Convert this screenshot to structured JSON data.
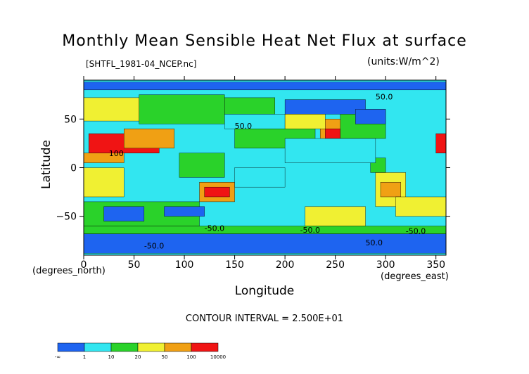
{
  "chart_data": {
    "type": "heatmap",
    "title": "Monthly Mean Sensible Heat Net Flux at surface",
    "file_label": "[SHTFL_1981-04_NCEP.nc]",
    "units_label": "(units:W/m^2)",
    "xlabel": "Longitude",
    "ylabel": "Latitude",
    "x_unit_label": "(degrees_east)",
    "y_unit_label": "(degrees_north)",
    "xlim": [
      0,
      360
    ],
    "ylim": [
      -90,
      90
    ],
    "x_ticks": [
      0,
      50,
      100,
      150,
      200,
      250,
      300,
      350
    ],
    "y_ticks": [
      -50,
      0,
      50
    ],
    "contour_interval_text": "CONTOUR INTERVAL = 2.500E+01",
    "contour_labels": [
      "50.0",
      "50.0",
      "100",
      "-50.0",
      "-50.0",
      "-50.0",
      "50.0",
      "-50.0"
    ],
    "colorbar": {
      "boundaries": [
        "-∞",
        "1",
        "10",
        "20",
        "50",
        "100",
        "10000"
      ],
      "colors": [
        "#1e64f0",
        "#32e6f0",
        "#2ad22a",
        "#f0f032",
        "#f0a014",
        "#f01414"
      ]
    },
    "regions": [
      {
        "lon": [
          0,
          360
        ],
        "lat": [
          -90,
          90
        ],
        "bin": 1
      },
      {
        "lon": [
          0,
          360
        ],
        "lat": [
          -88,
          -68
        ],
        "bin": 0
      },
      {
        "lon": [
          0,
          360
        ],
        "lat": [
          80,
          88
        ],
        "bin": 0
      },
      {
        "lon": [
          0,
          55
        ],
        "lat": [
          48,
          72
        ],
        "bin": 3
      },
      {
        "lon": [
          55,
          140
        ],
        "lat": [
          45,
          75
        ],
        "bin": 2
      },
      {
        "lon": [
          140,
          190
        ],
        "lat": [
          55,
          72
        ],
        "bin": 2
      },
      {
        "lon": [
          5,
          75
        ],
        "lat": [
          15,
          35
        ],
        "bin": 5
      },
      {
        "lon": [
          0,
          40
        ],
        "lat": [
          5,
          15
        ],
        "bin": 4
      },
      {
        "lon": [
          40,
          90
        ],
        "lat": [
          20,
          40
        ],
        "bin": 4
      },
      {
        "lon": [
          235,
          270
        ],
        "lat": [
          25,
          50
        ],
        "bin": 4
      },
      {
        "lon": [
          240,
          255
        ],
        "lat": [
          30,
          40
        ],
        "bin": 5
      },
      {
        "lon": [
          255,
          300
        ],
        "lat": [
          30,
          60
        ],
        "bin": 2
      },
      {
        "lon": [
          200,
          280
        ],
        "lat": [
          55,
          70
        ],
        "bin": 0
      },
      {
        "lon": [
          270,
          300
        ],
        "lat": [
          45,
          60
        ],
        "bin": 0
      },
      {
        "lon": [
          350,
          360
        ],
        "lat": [
          15,
          35
        ],
        "bin": 5
      },
      {
        "lon": [
          115,
          150
        ],
        "lat": [
          -35,
          -15
        ],
        "bin": 4
      },
      {
        "lon": [
          120,
          145
        ],
        "lat": [
          -30,
          -20
        ],
        "bin": 5
      },
      {
        "lon": [
          0,
          40
        ],
        "lat": [
          -30,
          0
        ],
        "bin": 3
      },
      {
        "lon": [
          290,
          320
        ],
        "lat": [
          -40,
          -5
        ],
        "bin": 3
      },
      {
        "lon": [
          295,
          315
        ],
        "lat": [
          -30,
          -15
        ],
        "bin": 4
      },
      {
        "lon": [
          285,
          300
        ],
        "lat": [
          -5,
          10
        ],
        "bin": 2
      },
      {
        "lon": [
          0,
          115
        ],
        "lat": [
          -60,
          -35
        ],
        "bin": 2
      },
      {
        "lon": [
          310,
          360
        ],
        "lat": [
          -50,
          -30
        ],
        "bin": 3
      },
      {
        "lon": [
          220,
          280
        ],
        "lat": [
          -60,
          -40
        ],
        "bin": 3
      },
      {
        "lon": [
          0,
          360
        ],
        "lat": [
          -68,
          -60
        ],
        "bin": 2
      },
      {
        "lon": [
          150,
          230
        ],
        "lat": [
          20,
          50
        ],
        "bin": 2
      },
      {
        "lon": [
          140,
          200
        ],
        "lat": [
          40,
          55
        ],
        "bin": 1
      },
      {
        "lon": [
          200,
          240
        ],
        "lat": [
          40,
          55
        ],
        "bin": 3
      },
      {
        "lon": [
          20,
          60
        ],
        "lat": [
          -55,
          -40
        ],
        "bin": 0
      },
      {
        "lon": [
          80,
          120
        ],
        "lat": [
          -50,
          -40
        ],
        "bin": 0
      },
      {
        "lon": [
          150,
          200
        ],
        "lat": [
          -20,
          0
        ],
        "bin": 1
      },
      {
        "lon": [
          95,
          140
        ],
        "lat": [
          -10,
          15
        ],
        "bin": 2
      },
      {
        "lon": [
          200,
          290
        ],
        "lat": [
          5,
          30
        ],
        "bin": 1
      }
    ]
  }
}
